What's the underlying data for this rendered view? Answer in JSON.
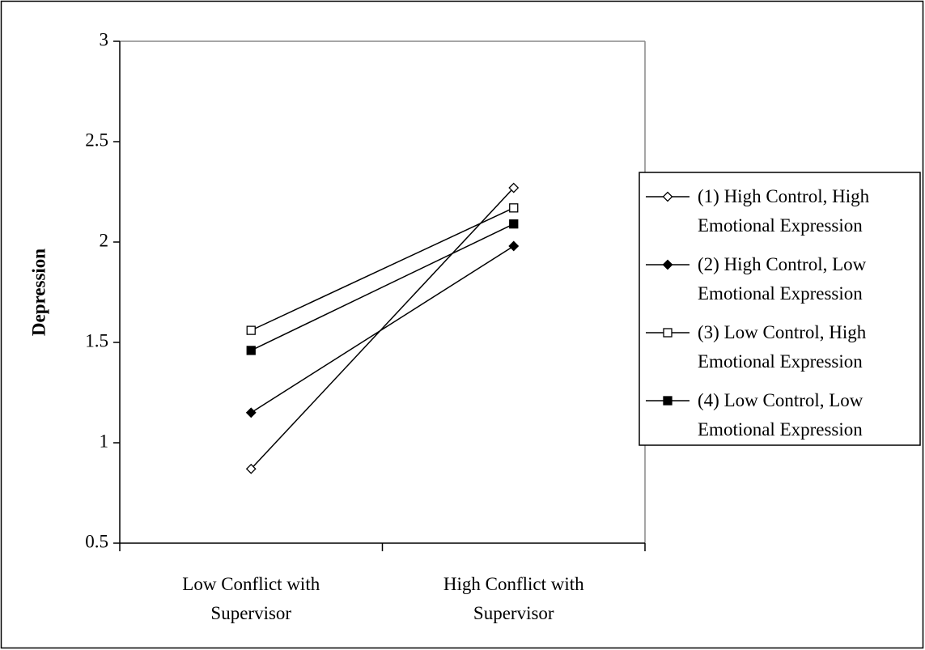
{
  "chart_data": {
    "type": "line",
    "y_label": "Depression",
    "categories": [
      "Low Conflict with Supervisor",
      "High Conflict with Supervisor"
    ],
    "series": [
      {
        "name": "(1) High Control, High Emotional Expression",
        "color": "#000000",
        "marker": "diamond",
        "filled": false,
        "values": [
          0.87,
          2.27
        ]
      },
      {
        "name": "(2) High Control, Low Emotional Expression",
        "color": "#000000",
        "marker": "diamond",
        "filled": true,
        "values": [
          1.15,
          1.98
        ]
      },
      {
        "name": "(3) Low Control, High Emotional Expression",
        "color": "#000000",
        "marker": "square",
        "filled": false,
        "values": [
          1.56,
          2.17
        ]
      },
      {
        "name": "(4) Low Control, Low Emotional Expression",
        "color": "#000000",
        "marker": "square",
        "filled": true,
        "values": [
          1.46,
          2.09
        ]
      }
    ],
    "ylim": [
      0.5,
      3
    ],
    "yticks": [
      0.5,
      1,
      1.5,
      2,
      2.5,
      3
    ],
    "grid": false,
    "legend": "right"
  }
}
